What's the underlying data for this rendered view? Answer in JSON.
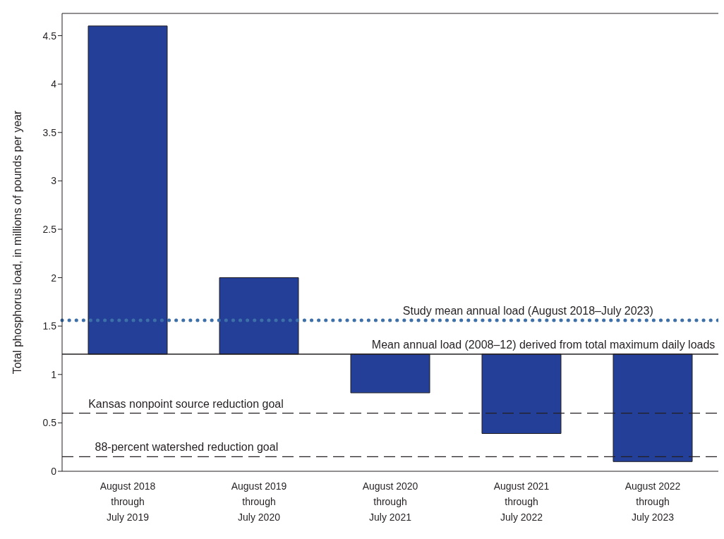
{
  "chart_data": {
    "type": "bar",
    "ylabel": "Total phosphorus load, in millions of pounds per year",
    "categories": [
      "August 2018\nthrough\nJuly 2019",
      "August 2019\nthrough\nJuly 2020",
      "August 2020\nthrough\nJuly 2021",
      "August 2021\nthrough\nJuly 2022",
      "August 2022\nthrough\nJuly 2023"
    ],
    "base": [
      1.21,
      1.21,
      1.21,
      1.21,
      1.21
    ],
    "values": [
      3.39,
      0.79,
      -0.4,
      -0.82,
      -1.11
    ],
    "color": "#233f97",
    "ylim": [
      0,
      4.73
    ],
    "yticks": [
      0,
      0.5,
      1,
      1.5,
      2,
      2.5,
      3,
      3.5,
      4,
      4.5
    ],
    "ref_lines": [
      {
        "axis": "y",
        "value": 1.56,
        "label": "Study mean annual load (August 2018–July 2023)",
        "color": "#3d6fa8",
        "line_style": "dotted"
      },
      {
        "axis": "y",
        "value": 1.21,
        "label": "Mean annual load (2008–12) derived from total maximum daily loads",
        "color": "#231f20",
        "line_style": "solid"
      },
      {
        "axis": "y",
        "value": 0.6,
        "label": "Kansas nonpoint source reduction goal",
        "color": "#231f20",
        "line_style": "dashed"
      },
      {
        "axis": "y",
        "value": 0.15,
        "label": "88-percent watershed reduction goal",
        "color": "#231f20",
        "line_style": "dashed"
      }
    ],
    "grid": false,
    "legend": false
  }
}
